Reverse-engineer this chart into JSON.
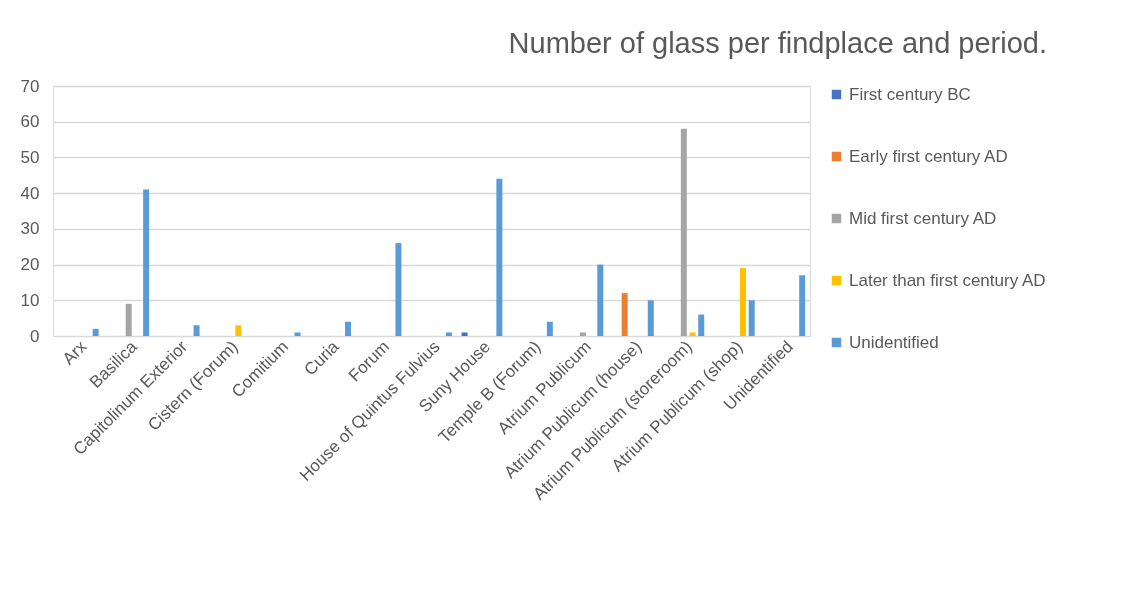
{
  "chart_data": {
    "type": "bar",
    "title": "Number of glass per findplace and period.",
    "categories": [
      "Arx",
      "Basilica",
      "Capitolinum Exterior",
      "Cistern (Forum)",
      "Comitium",
      "Curia",
      "Forum",
      "House of Quintus Fulvius",
      "Suny House",
      "Temple B (Forum)",
      "Atrium Publicum",
      "Atrium Publicum (house)",
      "Atrium Publicum (storeroom)",
      "Atrium Publicum (shop)",
      "Unidentified"
    ],
    "series": [
      {
        "name": "First century BC",
        "color": "#4472c4",
        "values": [
          0,
          0,
          0,
          0,
          0,
          0,
          0,
          0,
          1,
          0,
          0,
          0,
          0,
          0,
          0
        ]
      },
      {
        "name": "Early first century AD",
        "color": "#ed7d31",
        "values": [
          0,
          0,
          0,
          0,
          0,
          0,
          0,
          0,
          0,
          0,
          0,
          12,
          0,
          0,
          0
        ]
      },
      {
        "name": "Mid first century AD",
        "color": "#a5a5a5",
        "values": [
          0,
          9,
          0,
          0,
          0,
          0,
          0,
          0,
          0,
          0,
          1,
          0,
          58,
          0,
          0
        ]
      },
      {
        "name": "Later than first century AD",
        "color": "#ffc000",
        "values": [
          0,
          0,
          0,
          3,
          0,
          0,
          0,
          0,
          0,
          0,
          0,
          0,
          1,
          19,
          0
        ]
      },
      {
        "name": "Unidentified",
        "color": "#5b9bd5",
        "values": [
          2,
          41,
          3,
          0,
          1,
          4,
          26,
          1,
          44,
          4,
          20,
          10,
          6,
          10,
          17
        ]
      }
    ],
    "ylim": [
      0,
      70
    ],
    "yticks": [
      0,
      10,
      20,
      30,
      40,
      50,
      60,
      70
    ],
    "grid": "y",
    "legend": "right"
  }
}
